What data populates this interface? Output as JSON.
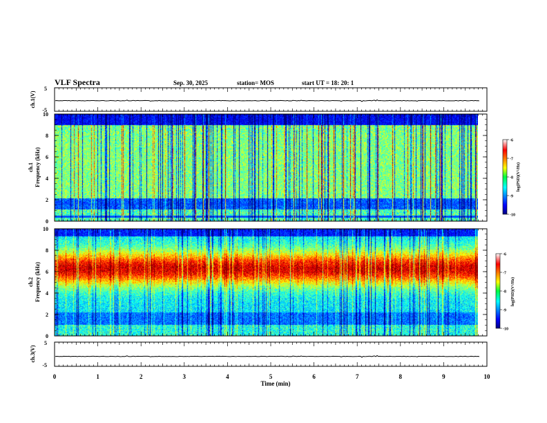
{
  "header": {
    "title": "VLF Spectra",
    "date": "Sep. 30, 2025",
    "station": "station= MOS",
    "start": "start  UT =   18: 20: 1"
  },
  "chart_data": [
    {
      "type": "line",
      "name": "ch1-waveform",
      "ylabel": "ch.1(V)",
      "ylim": [
        -5,
        5
      ],
      "yticks": [
        "5",
        "-5"
      ],
      "baseline": -0.5
    },
    {
      "type": "heatmap",
      "name": "ch1-spectrogram",
      "ylabel_line1": "ch.1",
      "ylabel_line2": "Frequency (kHz)",
      "ylim": [
        0,
        10
      ],
      "yticks": [
        "0",
        "2",
        "4",
        "6",
        "8",
        "10"
      ],
      "xlim": [
        0,
        10
      ],
      "data_end_min": 9.85,
      "colorbar": {
        "label": "log(PSD)(V²/Hz)",
        "range": [
          -10,
          -6
        ],
        "ticks": [
          "-6",
          "-7",
          "-8",
          "-9",
          "-10"
        ]
      }
    },
    {
      "type": "heatmap",
      "name": "ch2-spectrogram",
      "ylabel_line1": "ch.2",
      "ylabel_line2": "Frequency (kHz)",
      "ylim": [
        0,
        10
      ],
      "yticks": [
        "0",
        "2",
        "4",
        "6",
        "8",
        "10"
      ],
      "xlim": [
        0,
        10
      ],
      "data_end_min": 9.85,
      "colorbar": {
        "label": "log(PSD)(V²/Hz)",
        "range": [
          -10,
          -6
        ],
        "ticks": [
          "-6",
          "-7",
          "-8",
          "-9",
          "-10"
        ]
      }
    },
    {
      "type": "line",
      "name": "ch3-waveform",
      "ylabel": "ch.3(V)",
      "ylim": [
        -5,
        5
      ],
      "yticks": [
        "5",
        "-5"
      ],
      "baseline": -0.9
    }
  ],
  "xaxis": {
    "label": "Time  (min)",
    "range": [
      0,
      10
    ],
    "ticks": [
      "0",
      "1",
      "2",
      "3",
      "4",
      "5",
      "6",
      "7",
      "8",
      "9",
      "10"
    ]
  }
}
